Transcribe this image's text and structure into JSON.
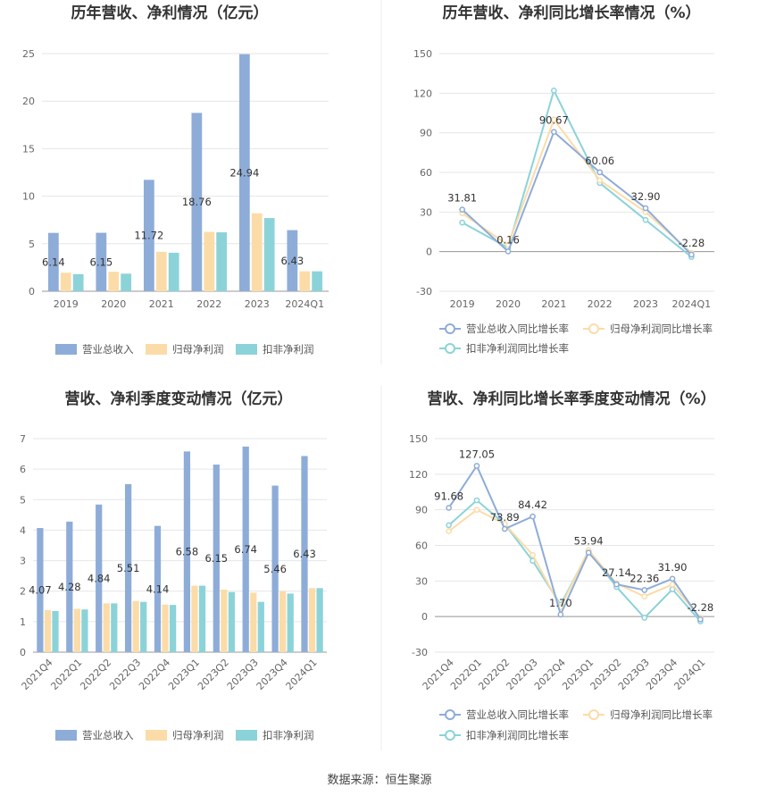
{
  "source": "数据来源：恒生聚源",
  "chart_data": [
    {
      "type": "bar",
      "title": "历年营收、净利情况（亿元）",
      "categories": [
        "2019",
        "2020",
        "2021",
        "2022",
        "2023",
        "2024Q1"
      ],
      "ylim": [
        0,
        25
      ],
      "yticks": [
        0,
        5,
        10,
        15,
        20,
        25
      ],
      "grid": true,
      "legend": "bottom",
      "series": [
        {
          "name": "营业总收入",
          "color": "#8eacd8",
          "values": [
            6.14,
            6.15,
            11.72,
            18.76,
            24.94,
            6.43
          ],
          "labels": [
            "6.14",
            "6.15",
            "11.72",
            "18.76",
            "24.94",
            "6.43"
          ]
        },
        {
          "name": "归母净利润",
          "color": "#fbdca8",
          "values": [
            1.95,
            2.05,
            4.15,
            6.25,
            8.2,
            2.1
          ]
        },
        {
          "name": "扣非净利润",
          "color": "#8bd3d9",
          "values": [
            1.8,
            1.85,
            4.05,
            6.2,
            7.7,
            2.1
          ]
        }
      ]
    },
    {
      "type": "line",
      "title": "历年营收、净利同比增长率情况（%）",
      "categories": [
        "2019",
        "2020",
        "2021",
        "2022",
        "2023",
        "2024Q1"
      ],
      "ylim": [
        -30,
        150
      ],
      "yticks": [
        -30,
        0,
        30,
        60,
        90,
        120,
        150
      ],
      "grid": true,
      "legend": "bottom",
      "series": [
        {
          "name": "营业总收入同比增长率",
          "color": "#8eacd8",
          "values": [
            31.81,
            0.16,
            90.67,
            60.06,
            32.9,
            -2.28
          ],
          "labels": [
            "31.81",
            "0.16",
            "90.67",
            "60.06",
            "32.90",
            "-2.28"
          ]
        },
        {
          "name": "归母净利润同比增长率",
          "color": "#fbdca8",
          "values": [
            29,
            5,
            100,
            54,
            30,
            -1
          ]
        },
        {
          "name": "扣非净利润同比增长率",
          "color": "#8bd3d9",
          "values": [
            22,
            3,
            122,
            52,
            24,
            -4
          ]
        }
      ]
    },
    {
      "type": "bar",
      "title": "营收、净利季度变动情况（亿元）",
      "categories": [
        "2021Q4",
        "2022Q1",
        "2022Q2",
        "2022Q3",
        "2022Q4",
        "2023Q1",
        "2023Q2",
        "2023Q3",
        "2023Q4",
        "2024Q1"
      ],
      "ylim": [
        0,
        7
      ],
      "yticks": [
        0,
        1,
        2,
        3,
        4,
        5,
        6,
        7
      ],
      "grid": true,
      "legend": "bottom",
      "series": [
        {
          "name": "营业总收入",
          "color": "#8eacd8",
          "values": [
            4.07,
            4.28,
            4.84,
            5.51,
            4.14,
            6.58,
            6.15,
            6.74,
            5.46,
            6.43
          ],
          "labels": [
            "4.07",
            "4.28",
            "4.84",
            "5.51",
            "4.14",
            "6.58",
            "6.15",
            "6.74",
            "5.46",
            "6.43"
          ]
        },
        {
          "name": "归母净利润",
          "color": "#fbdca8",
          "values": [
            1.38,
            1.42,
            1.6,
            1.68,
            1.56,
            2.18,
            2.05,
            1.95,
            2.0,
            2.1
          ]
        },
        {
          "name": "扣非净利润",
          "color": "#8bd3d9",
          "values": [
            1.35,
            1.4,
            1.6,
            1.65,
            1.55,
            2.18,
            1.97,
            1.65,
            1.92,
            2.1
          ]
        }
      ]
    },
    {
      "type": "line",
      "title": "营收、净利同比增长率季度变动情况（%）",
      "categories": [
        "2021Q4",
        "2022Q1",
        "2022Q2",
        "2022Q3",
        "2022Q4",
        "2023Q1",
        "2023Q2",
        "2023Q3",
        "2023Q4",
        "2024Q1"
      ],
      "ylim": [
        -30,
        150
      ],
      "yticks": [
        -30,
        0,
        30,
        60,
        90,
        120,
        150
      ],
      "grid": true,
      "legend": "bottom",
      "series": [
        {
          "name": "营业总收入同比增长率",
          "color": "#8eacd8",
          "values": [
            91.68,
            127.05,
            73.89,
            84.42,
            1.7,
            53.94,
            27.14,
            22.36,
            31.9,
            -2.28
          ],
          "labels": [
            "91.68",
            "127.05",
            "73.89",
            "84.42",
            "1.70",
            "53.94",
            "27.14",
            "22.36",
            "31.90",
            "-2.28"
          ]
        },
        {
          "name": "归母净利润同比增长率",
          "color": "#fbdca8",
          "values": [
            72,
            90,
            78,
            52,
            8,
            56,
            28,
            17,
            27,
            -1
          ]
        },
        {
          "name": "扣非净利润同比增长率",
          "color": "#8bd3d9",
          "values": [
            77,
            98,
            78,
            47,
            10,
            55,
            25,
            -1,
            23,
            -4
          ]
        }
      ]
    }
  ]
}
